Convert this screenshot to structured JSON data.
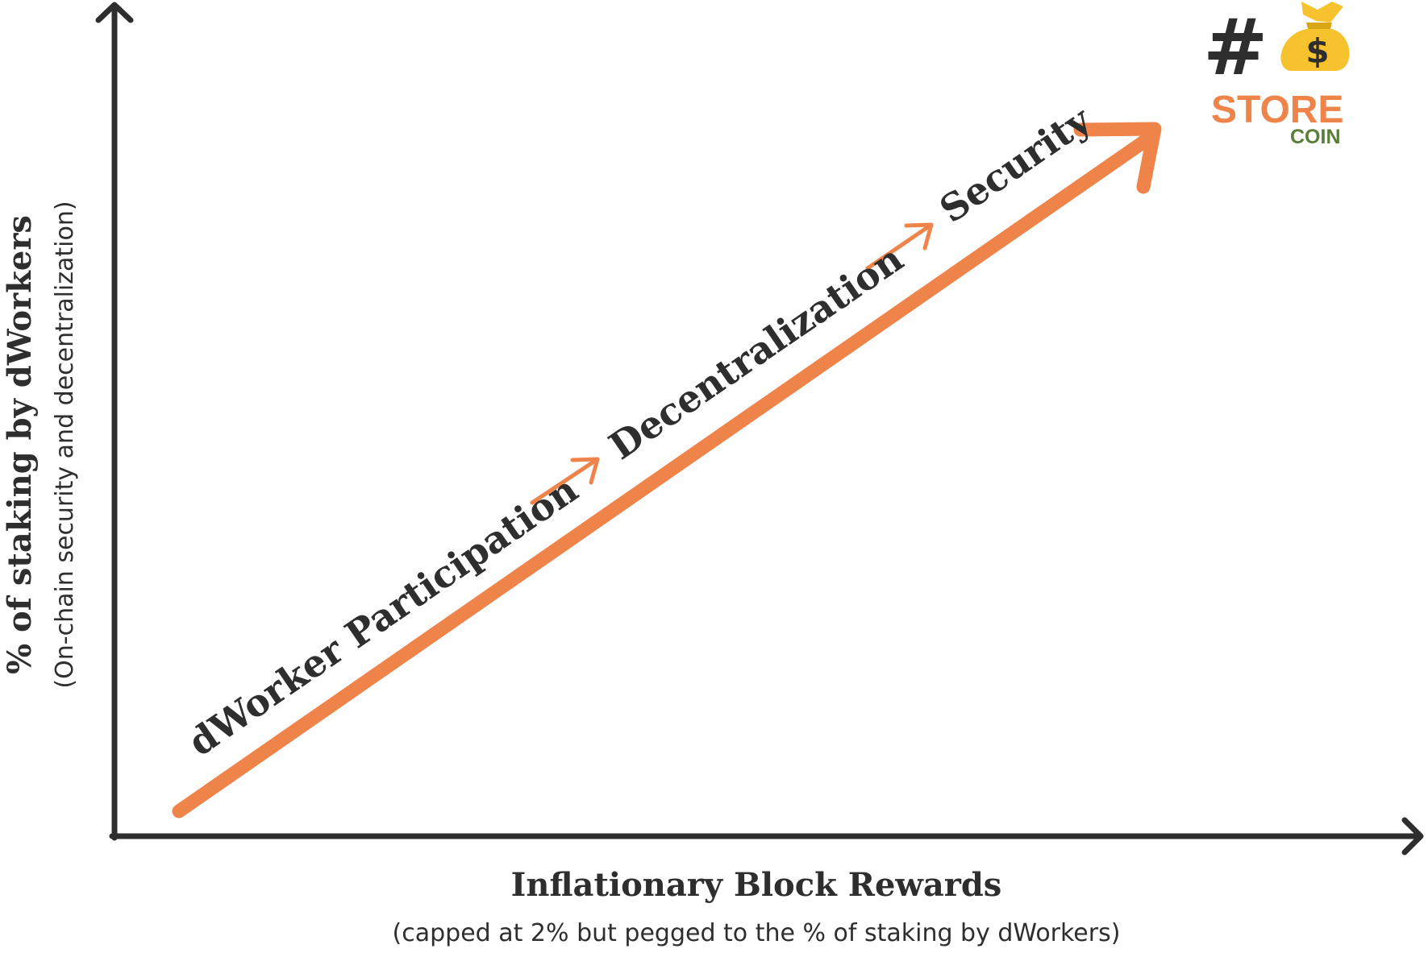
{
  "axes": {
    "y_title": "% of staking by dWorkers",
    "y_subtitle": "(On-chain security and decentralization)",
    "x_title": "Inflationary Block Rewards",
    "x_subtitle": "(capped at 2% but pegged to the % of staking by dWorkers)"
  },
  "stages": [
    {
      "label": "dWorker Participation"
    },
    {
      "label": "Decentralization"
    },
    {
      "label": "Security"
    }
  ],
  "logo": {
    "hash": "#",
    "bag_symbol": "$",
    "word": "STORE",
    "subword": "COIN",
    "bag_icon": "money-bag-icon"
  },
  "colors": {
    "accent": "#ef844b",
    "axis": "#2e2e2e",
    "text": "#2e2e2e",
    "logo_store": "#ef844b",
    "logo_coin": "#5a7d3a",
    "logo_bag": "#f6c22d"
  }
}
